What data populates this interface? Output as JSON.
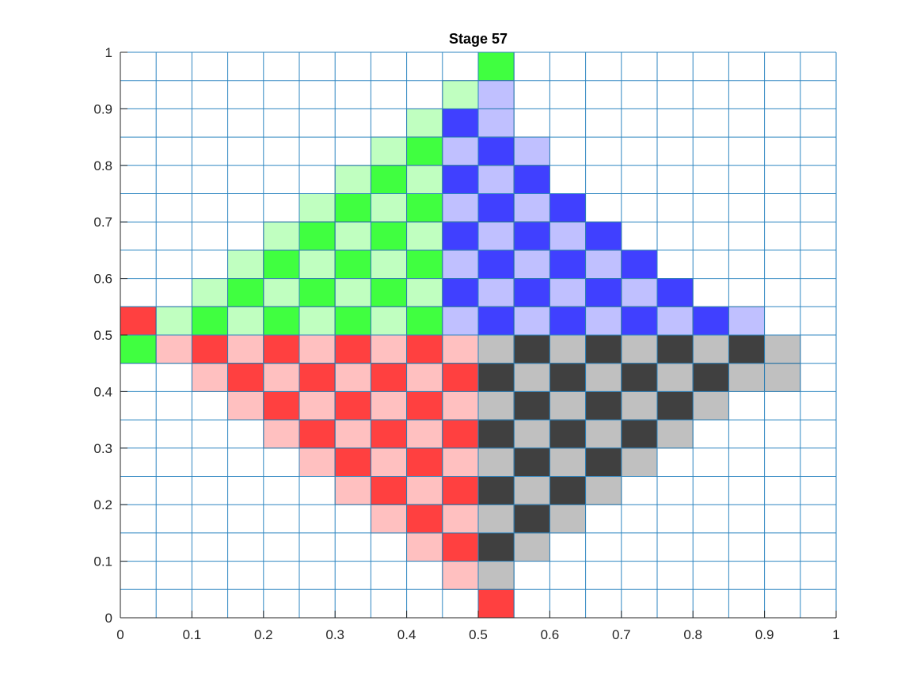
{
  "chart_data": {
    "type": "heatmap",
    "title": "Stage 57",
    "xlim": [
      0,
      1
    ],
    "ylim": [
      0,
      1
    ],
    "xticks": [
      "0",
      "0.1",
      "0.2",
      "0.3",
      "0.4",
      "0.5",
      "0.6",
      "0.7",
      "0.8",
      "0.9",
      "1"
    ],
    "yticks": [
      "0",
      "0.1",
      "0.2",
      "0.3",
      "0.4",
      "0.5",
      "0.6",
      "0.7",
      "0.8",
      "0.9",
      "1"
    ],
    "grid": true,
    "cell_size": 0.05,
    "grid_color": "#2e86c1",
    "colors": {
      "G": "#40ff40",
      "g": "#c0ffc0",
      "B": "#4040ff",
      "b": "#c0c0ff",
      "R": "#ff4040",
      "r": "#ffc0c0",
      "K": "#404040",
      "k": "#c0c0c0"
    },
    "rows_top_to_bottom": [
      "..........G.........",
      ".........gb.........",
      "........gBb.........",
      ".......gGbBb........",
      "......gGgBbB........",
      ".....gGgGbBbB.......",
      "....gGgGgBbBbB......",
      "...gGgGgGbBbBbB.....",
      "..gGgGgGgBbBbBbB....",
      "RgGgGgGgGbBbBbBbBb..",
      "GrRrRrRrRrkKkKkKkKk.",
      "..rRrRrRrRKkKkKkKkk.",
      "...rRrRrRrkKkKkKk...",
      "....rRrRrRKkKkKk....",
      ".....rRrRrkKkKk.....",
      "......rRrRKkKk......",
      ".......rRrkKk.......",
      "........rRKk........",
      ".........rk.........",
      "..........R........."
    ]
  }
}
